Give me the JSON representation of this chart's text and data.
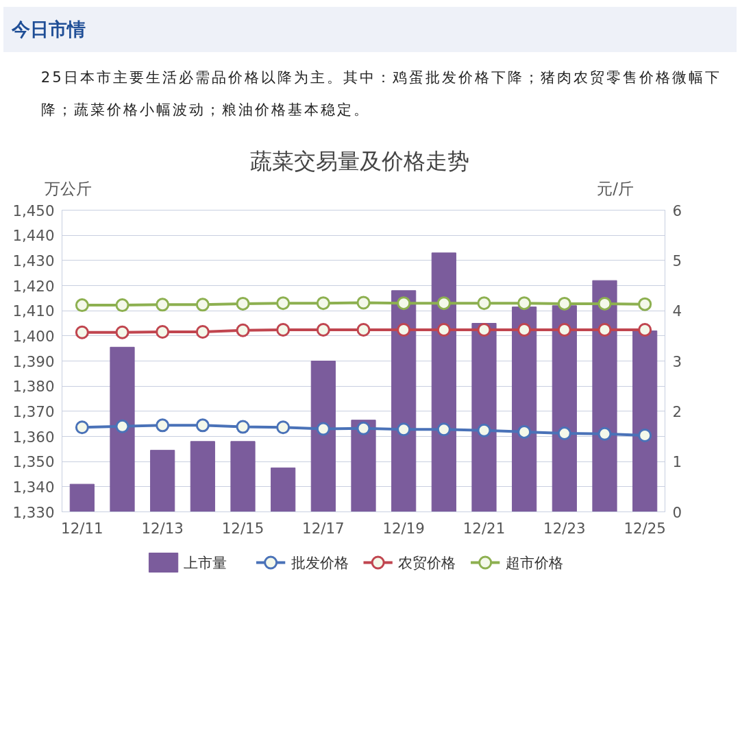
{
  "chart_data": {
    "type": "bar",
    "title": "蔬菜交易量及价格走势",
    "ylabel": "万公斤",
    "y2label": "元/斤",
    "annotations": [
      "今日市情",
      "25日本市主要生活必需品价格以降为主。其中：鸡蛋批发价格下降；猪肉农贸零售价格微幅下降；蔬菜价格小幅波动；粮油价格基本稳定。"
    ],
    "categories": [
      "12/11",
      null,
      "12/13",
      null,
      "12/15",
      null,
      "12/17",
      null,
      "12/19",
      null,
      "12/21",
      null,
      "12/23",
      null,
      "12/25"
    ],
    "series": [
      {
        "name": "上市量",
        "color": "#7b5c9c",
        "values": [
          1341,
          1395.5,
          1354.5,
          1358,
          1358,
          1347.5,
          1390,
          1366.5,
          1418,
          1433,
          1405,
          1411.5,
          1412,
          1422,
          1402
        ]
      },
      {
        "name": "批发价格",
        "type": "line",
        "axis": "y2",
        "color": "#4a72b8",
        "values": [
          1.68,
          1.7,
          1.72,
          1.72,
          1.69,
          1.68,
          1.65,
          1.66,
          1.64,
          1.64,
          1.62,
          1.59,
          1.56,
          1.55,
          1.52
        ]
      },
      {
        "name": "农贸价格",
        "type": "line",
        "axis": "y2",
        "color": "#c0454f",
        "values": [
          3.57,
          3.57,
          3.58,
          3.58,
          3.61,
          3.62,
          3.62,
          3.62,
          3.62,
          3.62,
          3.62,
          3.62,
          3.62,
          3.62,
          3.62
        ]
      },
      {
        "name": "超市价格",
        "type": "line",
        "axis": "y2",
        "color": "#8db050",
        "values": [
          4.11,
          4.11,
          4.12,
          4.12,
          4.14,
          4.15,
          4.15,
          4.16,
          4.15,
          4.15,
          4.15,
          4.15,
          4.14,
          4.14,
          4.13
        ]
      }
    ],
    "ylim": [
      1330,
      1450
    ],
    "yticks": [
      {
        "value": 1330,
        "label": "1,330"
      },
      {
        "value": 1340,
        "label": "1,340"
      },
      {
        "value": 1350,
        "label": "1,350"
      },
      {
        "value": 1360,
        "label": "1,360"
      },
      {
        "value": 1370,
        "label": "1,370"
      },
      {
        "value": 1380,
        "label": "1,380"
      },
      {
        "value": 1390,
        "label": "1,390"
      },
      {
        "value": 1400,
        "label": "1,400"
      },
      {
        "value": 1410,
        "label": "1,410"
      },
      {
        "value": 1420,
        "label": "1,420"
      },
      {
        "value": 1430,
        "label": "1,430"
      },
      {
        "value": 1440,
        "label": "1,440"
      },
      {
        "value": 1450,
        "label": "1,450"
      }
    ],
    "y2lim": [
      0,
      6
    ],
    "y2ticks": [
      0,
      1,
      2,
      3,
      4,
      5,
      6
    ],
    "grid": "y",
    "legend": "bottom",
    "marker": "circle",
    "line_style": "solid"
  }
}
